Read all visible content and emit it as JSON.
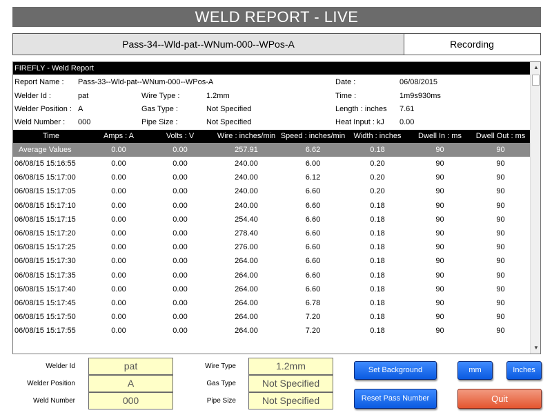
{
  "title": "WELD REPORT - LIVE",
  "pass_name": "Pass-34--Wld-pat--WNum-000--WPos-A",
  "status": "Recording",
  "report": {
    "title": "FIREFLY - Weld Report",
    "info": {
      "report_name_label": "Report Name :",
      "report_name": "Pass-33--Wld-pat--WNum-000--WPos-A",
      "date_label": "Date :",
      "date": "06/08/2015",
      "welder_id_label": "Welder Id :",
      "welder_id": "pat",
      "wire_type_label": "Wire Type :",
      "wire_type": "1.2mm",
      "time_label": "Time :",
      "time": "1m9s930ms",
      "welder_position_label": "Welder Position :",
      "welder_position": "A",
      "gas_type_label": "Gas Type :",
      "gas_type": "Not Specified",
      "length_label": "Length : inches",
      "length": "7.61",
      "weld_number_label": "Weld Number :",
      "weld_number": "000",
      "pipe_size_label": "Pipe Size :",
      "pipe_size": "Not Specified",
      "heat_input_label": "Heat Input : kJ",
      "heat_input": "0.00"
    },
    "columns": [
      "Time",
      "Amps : A",
      "Volts : V",
      "Wire : inches/min",
      "Speed : inches/min",
      "Width : inches",
      "Dwell In : ms",
      "Dwell Out : ms"
    ],
    "average": [
      "Average Values",
      "0.00",
      "0.00",
      "257.91",
      "6.62",
      "0.18",
      "90",
      "90"
    ],
    "rows": [
      [
        "06/08/15 15:16:55",
        "0.00",
        "0.00",
        "240.00",
        "6.00",
        "0.20",
        "90",
        "90"
      ],
      [
        "06/08/15 15:17:00",
        "0.00",
        "0.00",
        "240.00",
        "6.12",
        "0.20",
        "90",
        "90"
      ],
      [
        "06/08/15 15:17:05",
        "0.00",
        "0.00",
        "240.00",
        "6.60",
        "0.20",
        "90",
        "90"
      ],
      [
        "06/08/15 15:17:10",
        "0.00",
        "0.00",
        "240.00",
        "6.60",
        "0.18",
        "90",
        "90"
      ],
      [
        "06/08/15 15:17:15",
        "0.00",
        "0.00",
        "254.40",
        "6.60",
        "0.18",
        "90",
        "90"
      ],
      [
        "06/08/15 15:17:20",
        "0.00",
        "0.00",
        "278.40",
        "6.60",
        "0.18",
        "90",
        "90"
      ],
      [
        "06/08/15 15:17:25",
        "0.00",
        "0.00",
        "276.00",
        "6.60",
        "0.18",
        "90",
        "90"
      ],
      [
        "06/08/15 15:17:30",
        "0.00",
        "0.00",
        "264.00",
        "6.60",
        "0.18",
        "90",
        "90"
      ],
      [
        "06/08/15 15:17:35",
        "0.00",
        "0.00",
        "264.00",
        "6.60",
        "0.18",
        "90",
        "90"
      ],
      [
        "06/08/15 15:17:40",
        "0.00",
        "0.00",
        "264.00",
        "6.60",
        "0.18",
        "90",
        "90"
      ],
      [
        "06/08/15 15:17:45",
        "0.00",
        "0.00",
        "264.00",
        "6.78",
        "0.18",
        "90",
        "90"
      ],
      [
        "06/08/15 15:17:50",
        "0.00",
        "0.00",
        "264.00",
        "7.20",
        "0.18",
        "90",
        "90"
      ],
      [
        "06/08/15 15:17:55",
        "0.00",
        "0.00",
        "264.00",
        "7.20",
        "0.18",
        "90",
        "90"
      ]
    ]
  },
  "form": {
    "welder_id_label": "Welder Id",
    "welder_id_value": "pat",
    "welder_position_label": "Welder Position",
    "welder_position_value": "A",
    "weld_number_label": "Weld Number",
    "weld_number_value": "000",
    "wire_type_label": "Wire Type",
    "wire_type_value": "1.2mm",
    "gas_type_label": "Gas Type",
    "gas_type_value": "Not Specified",
    "pipe_size_label": "Pipe Size",
    "pipe_size_value": "Not Specified"
  },
  "buttons": {
    "set_background": "Set Background",
    "reset_pass_number": "Reset Pass Number",
    "mm": "mm",
    "inches": "Inches",
    "quit": "Quit"
  },
  "colors": {
    "title_bar": "#6b6b6b",
    "table_header": "#000000",
    "average_row": "#8a8a8a",
    "form_field": "#ffffc8",
    "button_blue": "#0a5ae0",
    "button_quit": "#e4552f"
  }
}
